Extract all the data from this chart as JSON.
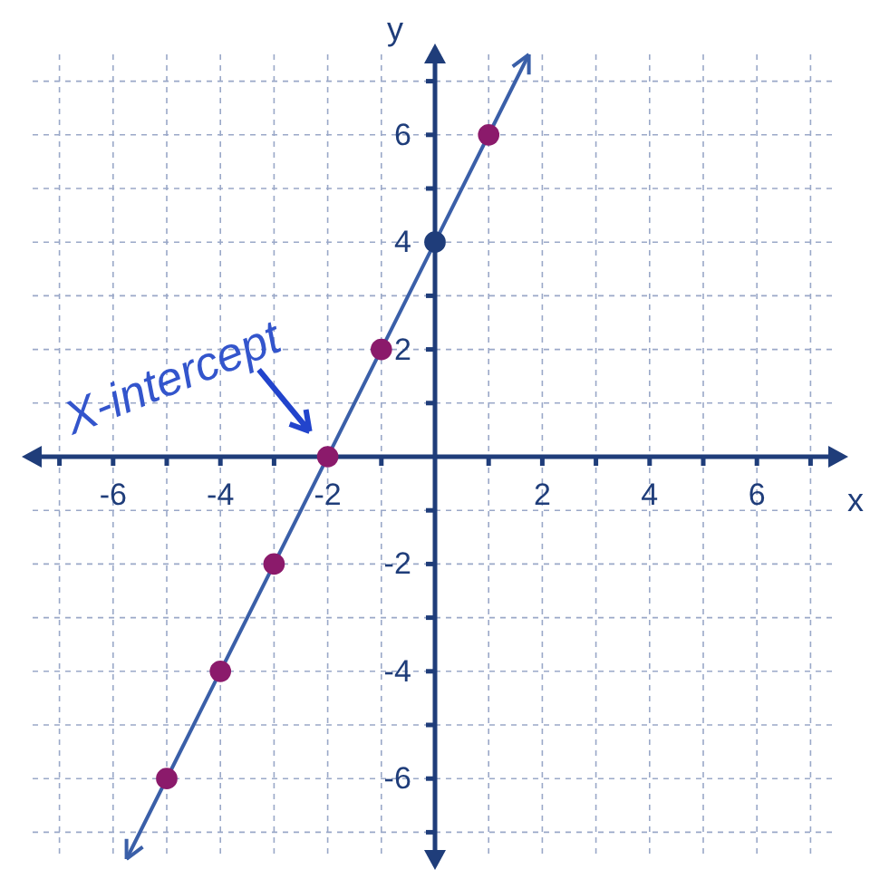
{
  "chart_data": {
    "type": "scatter",
    "xlabel": "x",
    "ylabel": "y",
    "xlim": [
      -7.5,
      7.5
    ],
    "ylim": [
      -7.5,
      7.5
    ],
    "xticks": [
      {
        "value": -7,
        "label": null
      },
      -6,
      {
        "value": -5,
        "label": null
      },
      -4,
      {
        "value": -3,
        "label": null
      },
      -2,
      {
        "value": -1,
        "label": null
      },
      {
        "value": 1,
        "label": null
      },
      2,
      {
        "value": 3,
        "label": null
      },
      4,
      {
        "value": 5,
        "label": null
      },
      6,
      {
        "value": 7,
        "label": null
      }
    ],
    "yticks": [
      {
        "value": -7,
        "label": null
      },
      -6,
      {
        "value": -5,
        "label": null
      },
      -4,
      {
        "value": -3,
        "label": null
      },
      -2,
      {
        "value": -1,
        "label": null
      },
      {
        "value": 1,
        "label": null
      },
      2,
      {
        "value": 3,
        "label": null
      },
      4,
      {
        "value": 5,
        "label": null
      },
      6,
      {
        "value": 7,
        "label": null
      }
    ],
    "grid": true,
    "series": [
      {
        "type": "line",
        "color": "#3a5fa8",
        "x": [
          -5.75,
          1.75
        ],
        "values": [
          -7.5,
          7.5
        ]
      },
      {
        "marker": "circle",
        "x": [
          -5,
          -4,
          -3,
          -2,
          -1,
          0,
          1
        ],
        "values": [
          -6,
          -4,
          -2,
          0,
          2,
          4,
          6
        ],
        "colors": [
          "#8b1a6b",
          "#8b1a6b",
          "#8b1a6b",
          "#8b1a6b",
          "#8b1a6b",
          "#1f3d7a",
          "#8b1a6b"
        ]
      }
    ],
    "annotations": [
      {
        "text": "X-intercept",
        "x": -2,
        "y": 0
      }
    ]
  }
}
